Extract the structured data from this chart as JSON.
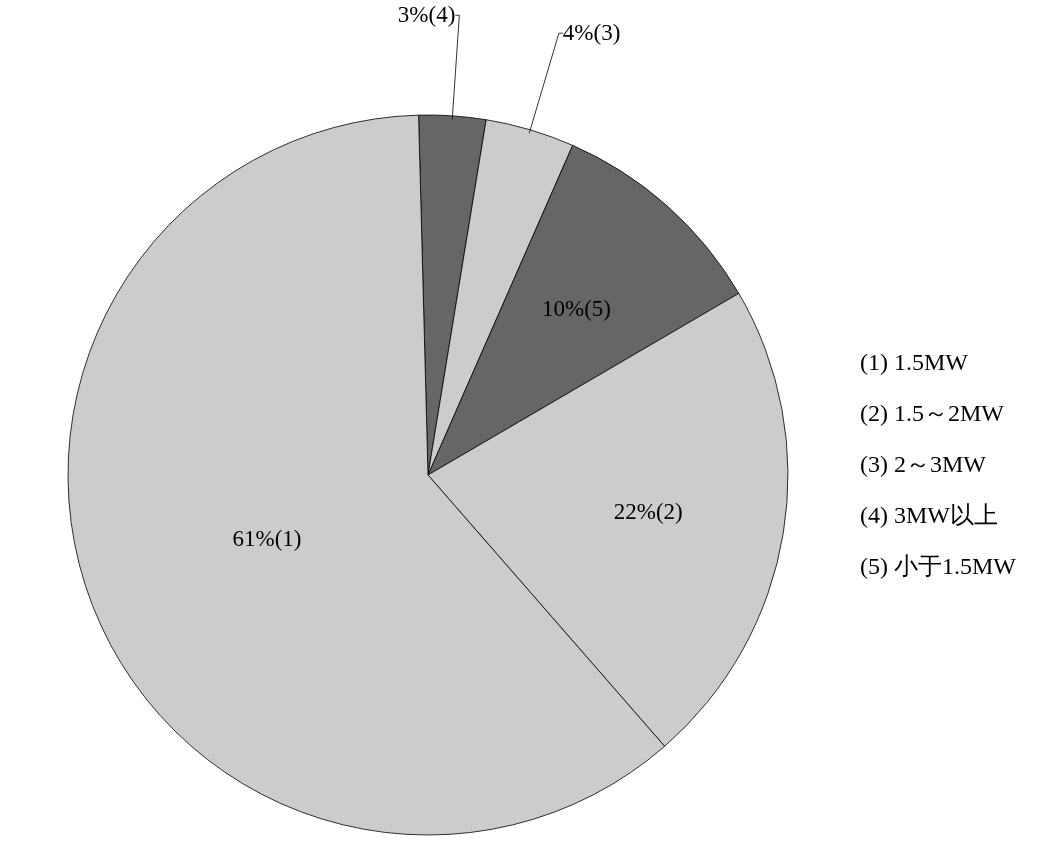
{
  "chart_data": {
    "type": "pie",
    "categories": [
      null,
      null,
      null,
      null,
      null
    ],
    "values": [
      3,
      4,
      10,
      22,
      61
    ],
    "value_labels": [
      "3%(4)",
      "4%(3)",
      "10%(5)",
      "22%(2)",
      "61%(1)"
    ],
    "colors": [
      "#666666",
      "#cccccc",
      "#666666",
      "#cccccc",
      "#cccccc"
    ],
    "annotations": [
      "(1) 1.5MW",
      "(2) 1.5～2MW",
      "(3) 2～3MW",
      "(4) 3MW以上",
      "(5) 小于1.5MW"
    ]
  }
}
